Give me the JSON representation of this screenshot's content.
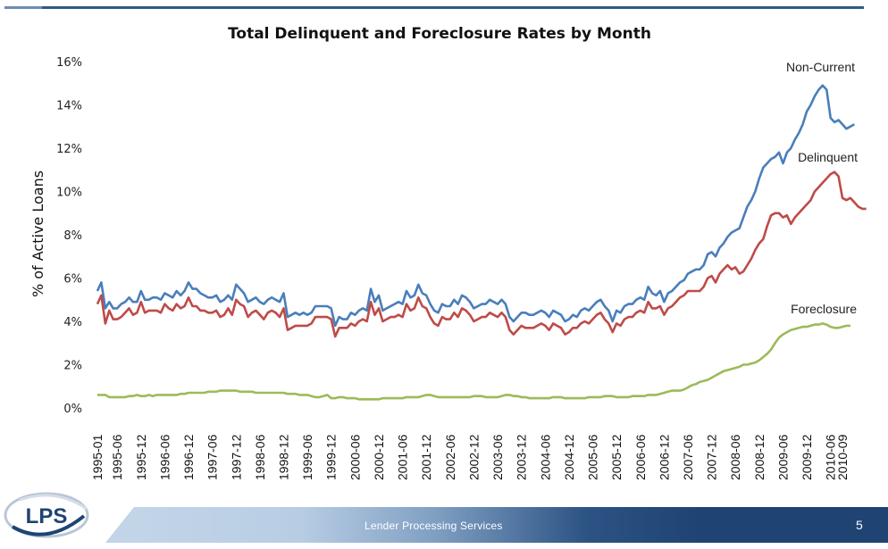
{
  "slide": {
    "footer_text": "Lender Processing Services",
    "page_number": "5",
    "logo_text": "LPS",
    "colors": {
      "header_rule": "#2f5a82",
      "footer_dark": "#1f4473",
      "footer_light": "#c2d4e8"
    }
  },
  "chart_data": {
    "type": "line",
    "title": "Total Delinquent and Foreclosure Rates by Month",
    "xlabel": "",
    "ylabel": "% of Active Loans",
    "ylim": [
      0,
      16
    ],
    "yticks": [
      "0%",
      "2%",
      "4%",
      "6%",
      "8%",
      "10%",
      "12%",
      "14%",
      "16%"
    ],
    "ytick_values": [
      0,
      2,
      4,
      6,
      8,
      10,
      12,
      14,
      16
    ],
    "grid": false,
    "legend": "inline labels at right end of each series",
    "x_start": "1995-01",
    "x_end": "2010-09",
    "x_frequency": "monthly",
    "xtick_labels": [
      "1995-01",
      "1995-06",
      "1995-12",
      "1996-06",
      "1996-12",
      "1997-06",
      "1997-12",
      "1998-06",
      "1998-12",
      "1999-06",
      "1999-12",
      "2000-06",
      "2000-12",
      "2001-06",
      "2001-12",
      "2002-06",
      "2002-12",
      "2003-06",
      "2003-12",
      "2004-06",
      "2004-12",
      "2005-06",
      "2005-12",
      "2006-06",
      "2006-12",
      "2007-06",
      "2007-12",
      "2008-06",
      "2008-12",
      "2009-06",
      "2009-12",
      "2010-06",
      "2010-09"
    ],
    "series": [
      {
        "name": "Non-Current",
        "color": "#4a7ebb",
        "label_anchor": "top-right",
        "values": [
          5.4,
          5.8,
          4.6,
          4.9,
          4.6,
          4.6,
          4.8,
          4.9,
          5.1,
          4.9,
          4.9,
          5.4,
          5.0,
          5.0,
          5.1,
          5.1,
          5.0,
          5.3,
          5.2,
          5.1,
          5.4,
          5.2,
          5.4,
          5.8,
          5.5,
          5.5,
          5.3,
          5.2,
          5.1,
          5.1,
          5.2,
          4.9,
          5.0,
          5.2,
          5.0,
          5.7,
          5.5,
          5.3,
          4.9,
          5.0,
          5.1,
          4.9,
          4.8,
          5.0,
          5.1,
          5.0,
          4.9,
          5.3,
          4.2,
          4.3,
          4.4,
          4.3,
          4.4,
          4.3,
          4.4,
          4.7,
          4.7,
          4.7,
          4.7,
          4.6,
          3.8,
          4.2,
          4.1,
          4.1,
          4.4,
          4.3,
          4.5,
          4.6,
          4.5,
          5.5,
          4.9,
          5.2,
          4.5,
          4.6,
          4.7,
          4.8,
          4.9,
          4.8,
          5.4,
          5.1,
          5.2,
          5.7,
          5.3,
          5.2,
          4.8,
          4.5,
          4.4,
          4.8,
          4.7,
          4.7,
          5.0,
          4.8,
          5.2,
          5.1,
          4.9,
          4.6,
          4.7,
          4.8,
          4.8,
          5.0,
          4.9,
          4.8,
          5.0,
          4.8,
          4.2,
          4.0,
          4.2,
          4.4,
          4.4,
          4.3,
          4.3,
          4.4,
          4.5,
          4.4,
          4.2,
          4.5,
          4.4,
          4.3,
          4.0,
          4.1,
          4.3,
          4.2,
          4.5,
          4.6,
          4.5,
          4.7,
          4.9,
          5.0,
          4.7,
          4.5,
          4.0,
          4.5,
          4.4,
          4.7,
          4.8,
          4.8,
          5.0,
          5.1,
          5.0,
          5.6,
          5.3,
          5.2,
          5.4,
          4.9,
          5.3,
          5.4,
          5.6,
          5.8,
          5.9,
          6.2,
          6.3,
          6.4,
          6.4,
          6.6,
          7.1,
          7.2,
          7.0,
          7.4,
          7.6,
          7.9,
          8.1,
          8.2,
          8.3,
          8.8,
          9.3,
          9.6,
          10.0,
          10.6,
          11.1,
          11.3,
          11.5,
          11.6,
          11.8,
          11.3,
          11.8,
          12.0,
          12.4,
          12.7,
          13.1,
          13.7,
          14.0,
          14.4,
          14.7,
          14.9,
          14.7,
          13.4,
          13.2,
          13.3,
          13.1,
          12.9,
          13.0,
          13.1
        ],
        "end_label": "Non-Current"
      },
      {
        "name": "Delinquent",
        "color": "#be4b48",
        "values": [
          4.8,
          5.2,
          3.9,
          4.5,
          4.1,
          4.1,
          4.2,
          4.4,
          4.6,
          4.3,
          4.4,
          4.9,
          4.4,
          4.5,
          4.5,
          4.5,
          4.4,
          4.8,
          4.6,
          4.5,
          4.8,
          4.6,
          4.7,
          5.1,
          4.7,
          4.7,
          4.5,
          4.5,
          4.4,
          4.4,
          4.5,
          4.2,
          4.3,
          4.6,
          4.3,
          5.0,
          4.8,
          4.7,
          4.2,
          4.4,
          4.5,
          4.3,
          4.1,
          4.4,
          4.5,
          4.4,
          4.2,
          4.6,
          3.6,
          3.7,
          3.8,
          3.8,
          3.8,
          3.8,
          3.9,
          4.2,
          4.2,
          4.2,
          4.2,
          4.1,
          3.3,
          3.7,
          3.7,
          3.7,
          3.9,
          3.8,
          4.0,
          4.1,
          4.0,
          4.9,
          4.3,
          4.6,
          4.0,
          4.1,
          4.2,
          4.2,
          4.3,
          4.2,
          4.8,
          4.5,
          4.6,
          5.1,
          4.7,
          4.6,
          4.2,
          3.9,
          3.8,
          4.2,
          4.1,
          4.1,
          4.4,
          4.2,
          4.6,
          4.5,
          4.3,
          4.0,
          4.1,
          4.2,
          4.2,
          4.4,
          4.3,
          4.2,
          4.4,
          4.2,
          3.6,
          3.4,
          3.6,
          3.8,
          3.7,
          3.7,
          3.7,
          3.8,
          3.9,
          3.8,
          3.6,
          3.9,
          3.8,
          3.7,
          3.4,
          3.5,
          3.7,
          3.7,
          3.9,
          4.0,
          3.9,
          4.1,
          4.3,
          4.4,
          4.1,
          3.9,
          3.5,
          3.9,
          3.8,
          4.1,
          4.2,
          4.2,
          4.4,
          4.5,
          4.4,
          4.9,
          4.6,
          4.6,
          4.7,
          4.3,
          4.6,
          4.7,
          4.9,
          5.1,
          5.2,
          5.4,
          5.4,
          5.4,
          5.4,
          5.6,
          6.0,
          6.1,
          5.8,
          6.2,
          6.4,
          6.6,
          6.4,
          6.5,
          6.2,
          6.3,
          6.6,
          6.9,
          7.3,
          7.6,
          7.8,
          8.4,
          8.9,
          9.0,
          9.0,
          8.8,
          8.9,
          8.5,
          8.8,
          9.0,
          9.2,
          9.4,
          9.6,
          10.0,
          10.2,
          10.4,
          10.6,
          10.8,
          10.9,
          10.7,
          9.7,
          9.6,
          9.7,
          9.5,
          9.3,
          9.2,
          9.2
        ],
        "end_label": "Delinquent"
      },
      {
        "name": "Foreclosure",
        "color": "#9bbb59",
        "values": [
          0.6,
          0.6,
          0.6,
          0.5,
          0.5,
          0.5,
          0.5,
          0.5,
          0.55,
          0.55,
          0.6,
          0.55,
          0.55,
          0.6,
          0.55,
          0.6,
          0.6,
          0.6,
          0.6,
          0.6,
          0.6,
          0.65,
          0.65,
          0.7,
          0.7,
          0.7,
          0.7,
          0.7,
          0.75,
          0.75,
          0.75,
          0.8,
          0.8,
          0.8,
          0.8,
          0.8,
          0.75,
          0.75,
          0.75,
          0.75,
          0.7,
          0.7,
          0.7,
          0.7,
          0.7,
          0.7,
          0.7,
          0.7,
          0.65,
          0.65,
          0.65,
          0.6,
          0.6,
          0.6,
          0.55,
          0.5,
          0.5,
          0.55,
          0.6,
          0.45,
          0.45,
          0.5,
          0.5,
          0.45,
          0.45,
          0.45,
          0.4,
          0.4,
          0.4,
          0.4,
          0.4,
          0.4,
          0.45,
          0.45,
          0.45,
          0.45,
          0.45,
          0.45,
          0.5,
          0.5,
          0.5,
          0.5,
          0.55,
          0.6,
          0.6,
          0.55,
          0.5,
          0.5,
          0.5,
          0.5,
          0.5,
          0.5,
          0.5,
          0.5,
          0.5,
          0.55,
          0.55,
          0.55,
          0.5,
          0.5,
          0.5,
          0.5,
          0.55,
          0.6,
          0.6,
          0.55,
          0.55,
          0.5,
          0.5,
          0.45,
          0.45,
          0.45,
          0.45,
          0.45,
          0.45,
          0.5,
          0.5,
          0.5,
          0.45,
          0.45,
          0.45,
          0.45,
          0.45,
          0.45,
          0.5,
          0.5,
          0.5,
          0.5,
          0.55,
          0.55,
          0.55,
          0.5,
          0.5,
          0.5,
          0.5,
          0.55,
          0.55,
          0.55,
          0.55,
          0.6,
          0.6,
          0.6,
          0.65,
          0.7,
          0.75,
          0.8,
          0.8,
          0.8,
          0.85,
          0.95,
          1.05,
          1.1,
          1.2,
          1.25,
          1.3,
          1.4,
          1.5,
          1.6,
          1.7,
          1.75,
          1.8,
          1.85,
          1.9,
          2.0,
          2.0,
          2.05,
          2.1,
          2.2,
          2.35,
          2.5,
          2.7,
          3.0,
          3.25,
          3.4,
          3.5,
          3.6,
          3.65,
          3.7,
          3.75,
          3.75,
          3.8,
          3.85,
          3.85,
          3.9,
          3.85,
          3.75,
          3.7,
          3.7,
          3.75,
          3.8,
          3.8
        ],
        "end_label": "Foreclosure"
      }
    ]
  }
}
